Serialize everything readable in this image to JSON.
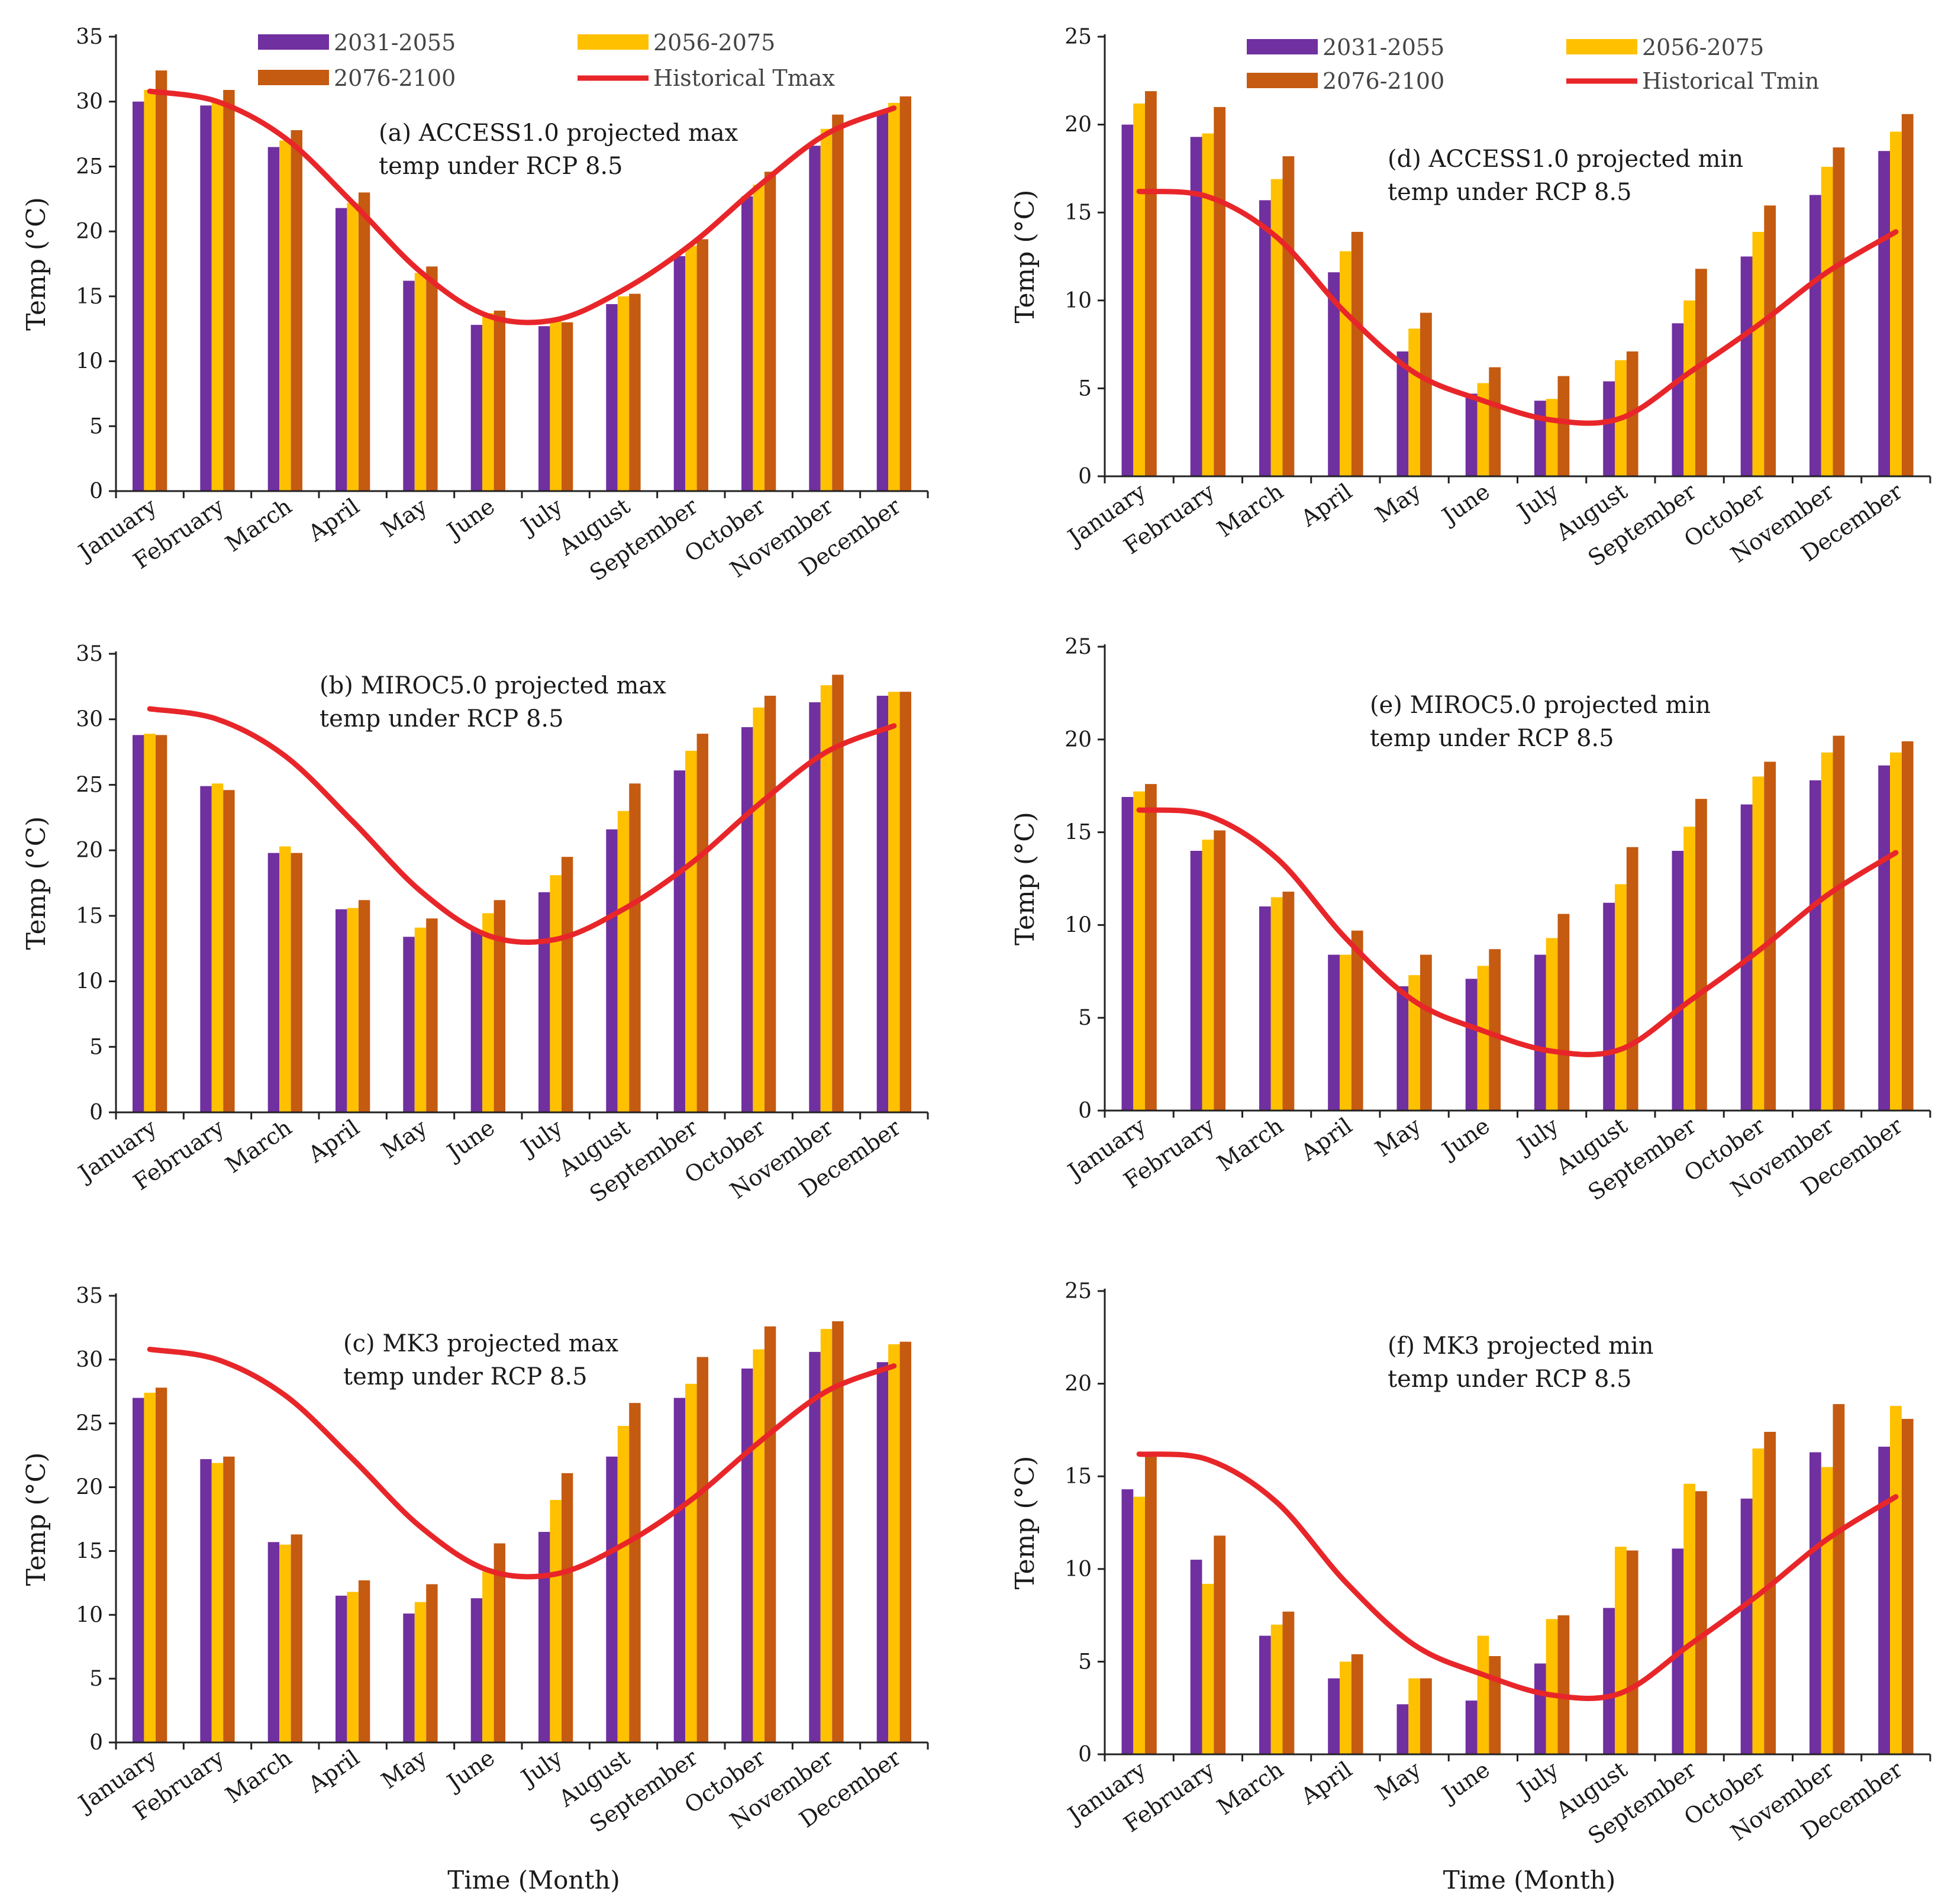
{
  "colors": {
    "p1": "#7030A0",
    "p2": "#FFC000",
    "p3": "#C55A11",
    "hist": "#E8262A"
  },
  "legend_labels": [
    "2031-2055",
    "2056-2075",
    "2076-2100"
  ],
  "chart_data": [
    {
      "id": "a",
      "type": "bar",
      "ylim": [
        0,
        35
      ],
      "ytick_step": 5,
      "ylabel": "Temp (°C)",
      "xlabel": "",
      "annotation": [
        "(a) ACCESS1.0 projected max",
        "temp under RCP 8.5"
      ],
      "legend_hist": "Historical Tmax",
      "categories": [
        "January",
        "February",
        "March",
        "April",
        "May",
        "June",
        "July",
        "August",
        "September",
        "October",
        "November",
        "December"
      ],
      "series": [
        {
          "name": "2031-2055",
          "values": [
            30.0,
            29.7,
            26.5,
            21.8,
            16.2,
            12.8,
            12.7,
            14.4,
            18.1,
            22.7,
            26.6,
            29.2
          ]
        },
        {
          "name": "2056-2075",
          "values": [
            30.9,
            30.1,
            27.0,
            22.2,
            16.8,
            13.7,
            13.2,
            15.0,
            18.9,
            23.6,
            27.9,
            29.9
          ]
        },
        {
          "name": "2076-2100",
          "values": [
            32.4,
            30.9,
            27.8,
            23.0,
            17.3,
            13.9,
            13.0,
            15.2,
            19.4,
            24.6,
            29.0,
            30.4
          ]
        }
      ],
      "historical": {
        "name": "Historical Tmax",
        "values": [
          30.8,
          30.0,
          27.2,
          22.2,
          16.9,
          13.5,
          13.2,
          15.5,
          19.0,
          23.5,
          27.5,
          29.5
        ]
      }
    },
    {
      "id": "b",
      "type": "bar",
      "ylim": [
        0,
        35
      ],
      "ytick_step": 5,
      "ylabel": "Temp (°C)",
      "xlabel": "",
      "annotation": [
        "(b) MIROC5.0 projected max",
        "temp under RCP 8.5"
      ],
      "categories": [
        "January",
        "February",
        "March",
        "April",
        "May",
        "June",
        "July",
        "August",
        "September",
        "October",
        "November",
        "December"
      ],
      "series": [
        {
          "name": "2031-2055",
          "values": [
            28.8,
            24.9,
            19.8,
            15.5,
            13.4,
            13.9,
            16.8,
            21.6,
            26.1,
            29.4,
            31.3,
            31.8
          ]
        },
        {
          "name": "2056-2075",
          "values": [
            28.9,
            25.1,
            20.3,
            15.6,
            14.1,
            15.2,
            18.1,
            23.0,
            27.6,
            30.9,
            32.6,
            32.1
          ]
        },
        {
          "name": "2076-2100",
          "values": [
            28.8,
            24.6,
            19.8,
            16.2,
            14.8,
            16.2,
            19.5,
            25.1,
            28.9,
            31.8,
            33.4,
            32.1
          ]
        }
      ],
      "historical": {
        "name": "Historical Tmax",
        "values": [
          30.8,
          30.0,
          27.2,
          22.2,
          16.9,
          13.5,
          13.2,
          15.5,
          19.0,
          23.5,
          27.5,
          29.5
        ]
      }
    },
    {
      "id": "c",
      "type": "bar",
      "ylim": [
        0,
        35
      ],
      "ytick_step": 5,
      "ylabel": "Temp (°C)",
      "xlabel": "Time (Month)",
      "annotation": [
        "(c) MK3 projected max",
        "temp under RCP 8.5"
      ],
      "categories": [
        "January",
        "February",
        "March",
        "April",
        "May",
        "June",
        "July",
        "August",
        "September",
        "October",
        "November",
        "December"
      ],
      "series": [
        {
          "name": "2031-2055",
          "values": [
            27.0,
            22.2,
            15.7,
            11.5,
            10.1,
            11.3,
            16.5,
            22.4,
            27.0,
            29.3,
            30.6,
            29.8
          ]
        },
        {
          "name": "2056-2075",
          "values": [
            27.4,
            21.9,
            15.5,
            11.8,
            11.0,
            13.4,
            19.0,
            24.8,
            28.1,
            30.8,
            32.4,
            31.2
          ]
        },
        {
          "name": "2076-2100",
          "values": [
            27.8,
            22.4,
            16.3,
            12.7,
            12.4,
            15.6,
            21.1,
            26.6,
            30.2,
            32.6,
            33.0,
            31.4
          ]
        }
      ],
      "historical": {
        "name": "Historical Tmax",
        "values": [
          30.8,
          30.0,
          27.2,
          22.2,
          16.9,
          13.5,
          13.2,
          15.5,
          19.0,
          23.5,
          27.5,
          29.5
        ]
      }
    },
    {
      "id": "d",
      "type": "bar",
      "ylim": [
        0,
        25
      ],
      "ytick_step": 5,
      "ylabel": "Temp (°C)",
      "xlabel": "",
      "annotation": [
        "(d) ACCESS1.0 projected min",
        "temp under RCP 8.5"
      ],
      "legend_hist": "Historical Tmin",
      "categories": [
        "January",
        "February",
        "March",
        "April",
        "May",
        "June",
        "July",
        "August",
        "September",
        "October",
        "November",
        "December"
      ],
      "series": [
        {
          "name": "2031-2055",
          "values": [
            20.0,
            19.3,
            15.7,
            11.6,
            7.1,
            4.7,
            4.3,
            5.4,
            8.7,
            12.5,
            16.0,
            18.5
          ]
        },
        {
          "name": "2056-2075",
          "values": [
            21.2,
            19.5,
            16.9,
            12.8,
            8.4,
            5.3,
            4.4,
            6.6,
            10.0,
            13.9,
            17.6,
            19.6
          ]
        },
        {
          "name": "2076-2100",
          "values": [
            21.9,
            21.0,
            18.2,
            13.9,
            9.3,
            6.2,
            5.7,
            7.1,
            11.8,
            15.4,
            18.7,
            20.6
          ]
        }
      ],
      "historical": {
        "name": "Historical Tmin",
        "values": [
          16.2,
          15.9,
          13.6,
          9.3,
          5.9,
          4.3,
          3.2,
          3.3,
          5.9,
          8.6,
          11.6,
          13.9
        ]
      }
    },
    {
      "id": "e",
      "type": "bar",
      "ylim": [
        0,
        25
      ],
      "ytick_step": 5,
      "ylabel": "Temp (°C)",
      "xlabel": "",
      "annotation": [
        "(e) MIROC5.0 projected min",
        "temp under RCP 8.5"
      ],
      "categories": [
        "January",
        "February",
        "March",
        "April",
        "May",
        "June",
        "July",
        "August",
        "September",
        "October",
        "November",
        "December"
      ],
      "series": [
        {
          "name": "2031-2055",
          "values": [
            16.9,
            14.0,
            11.0,
            8.4,
            6.7,
            7.1,
            8.4,
            11.2,
            14.0,
            16.5,
            17.8,
            18.6
          ]
        },
        {
          "name": "2056-2075",
          "values": [
            17.2,
            14.6,
            11.5,
            8.4,
            7.3,
            7.8,
            9.3,
            12.2,
            15.3,
            18.0,
            19.3,
            19.3
          ]
        },
        {
          "name": "2076-2100",
          "values": [
            17.6,
            15.1,
            11.8,
            9.7,
            8.4,
            8.7,
            10.6,
            14.2,
            16.8,
            18.8,
            20.2,
            19.9
          ]
        }
      ],
      "historical": {
        "name": "Historical Tmin",
        "values": [
          16.2,
          15.9,
          13.6,
          9.3,
          5.9,
          4.3,
          3.2,
          3.3,
          5.9,
          8.6,
          11.6,
          13.9
        ]
      }
    },
    {
      "id": "f",
      "type": "bar",
      "ylim": [
        0,
        25
      ],
      "ytick_step": 5,
      "ylabel": "Temp (°C)",
      "xlabel": "Time (Month)",
      "annotation": [
        "(f) MK3 projected min",
        "temp under RCP 8.5"
      ],
      "categories": [
        "January",
        "February",
        "March",
        "April",
        "May",
        "June",
        "July",
        "August",
        "September",
        "October",
        "November",
        "December"
      ],
      "series": [
        {
          "name": "2031-2055",
          "values": [
            14.3,
            10.5,
            6.4,
            4.1,
            2.7,
            2.9,
            4.9,
            7.9,
            11.1,
            13.8,
            16.3,
            16.6
          ]
        },
        {
          "name": "2056-2075",
          "values": [
            13.9,
            9.2,
            7.0,
            5.0,
            4.1,
            6.4,
            7.3,
            11.2,
            14.6,
            16.5,
            15.5,
            18.8
          ]
        },
        {
          "name": "2076-2100",
          "values": [
            16.2,
            11.8,
            7.7,
            5.4,
            4.1,
            5.3,
            7.5,
            11.0,
            14.2,
            17.4,
            18.9,
            18.1
          ]
        }
      ],
      "historical": {
        "name": "Historical Tmin",
        "values": [
          16.2,
          15.9,
          13.6,
          9.3,
          5.9,
          4.3,
          3.2,
          3.3,
          5.9,
          8.6,
          11.6,
          13.9
        ]
      }
    }
  ]
}
